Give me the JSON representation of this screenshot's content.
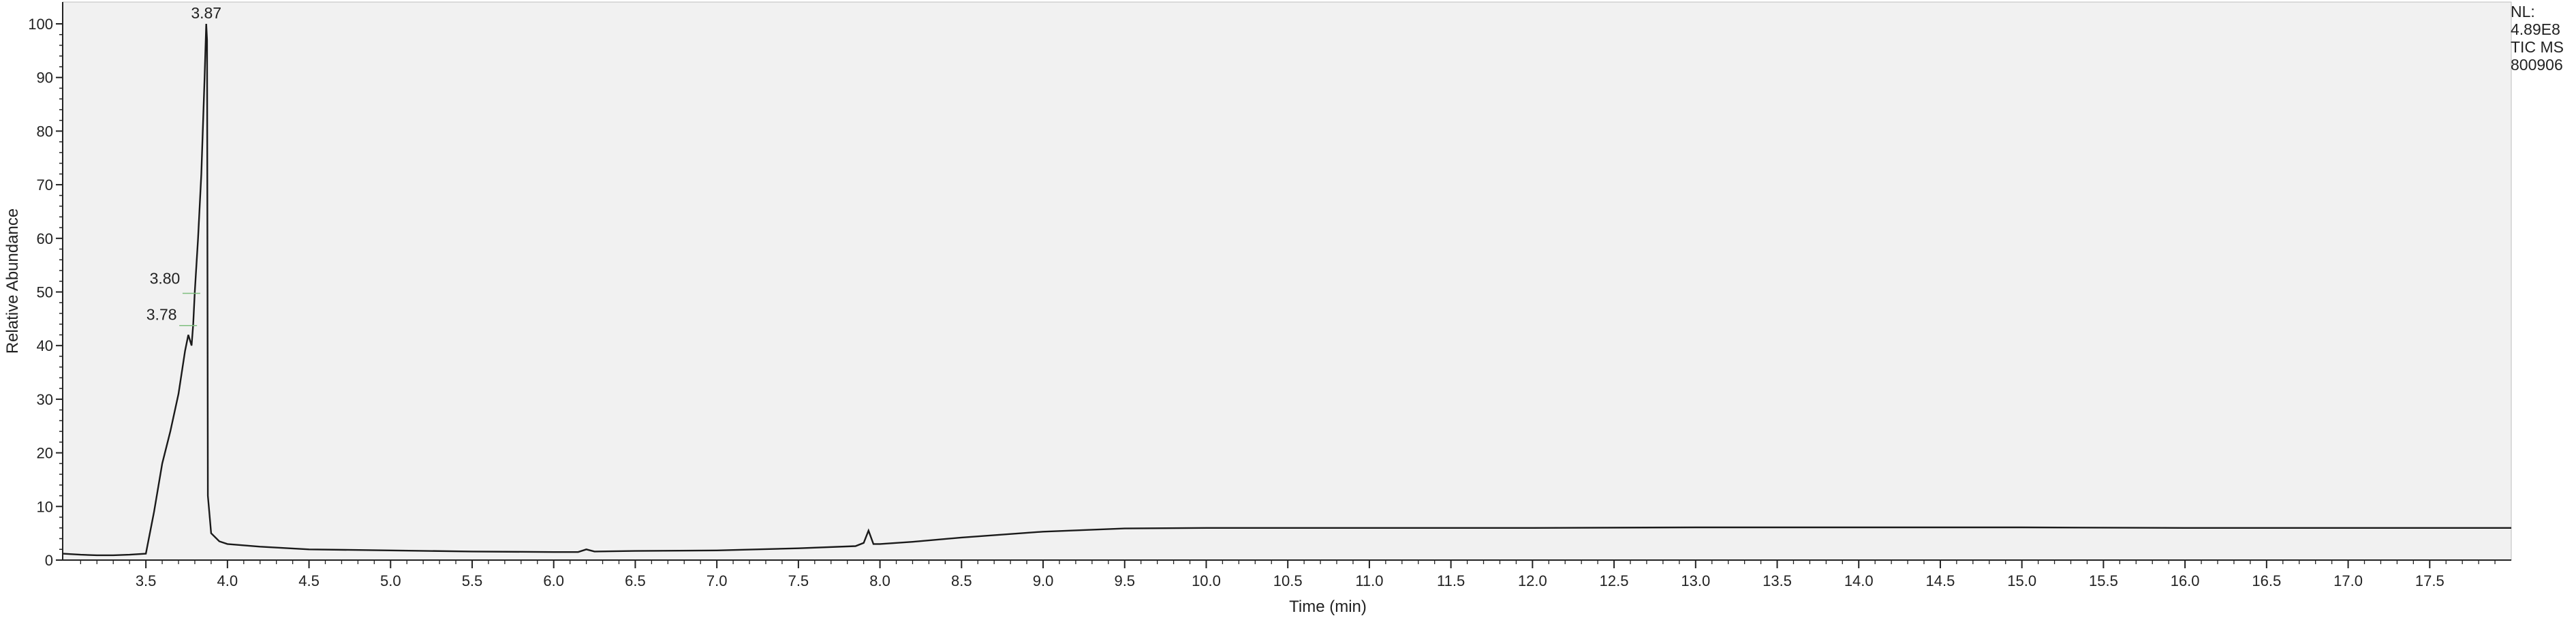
{
  "info": {
    "nl_label": "NL:",
    "nl_value": "4.89E8",
    "scan_type": "TIC  MS",
    "file_id": "800906"
  },
  "chart_data": {
    "type": "line",
    "title": "",
    "xlabel": "Time (min)",
    "ylabel": "Relative Abundance",
    "xlim": [
      2.99,
      18.0
    ],
    "ylim": [
      0,
      100
    ],
    "x_ticks": [
      3.5,
      4.0,
      4.5,
      5.0,
      5.5,
      6.0,
      6.5,
      7.0,
      7.5,
      8.0,
      8.5,
      9.0,
      9.5,
      10.0,
      10.5,
      11.0,
      11.5,
      12.0,
      12.5,
      13.0,
      13.5,
      14.0,
      14.5,
      15.0,
      15.5,
      16.0,
      16.5,
      17.0,
      17.5
    ],
    "x_tick_labels": [
      "3.5",
      "4.0",
      "4.5",
      "5.0",
      "5.5",
      "6.0",
      "6.5",
      "7.0",
      "7.5",
      "8.0",
      "8.5",
      "9.0",
      "9.5",
      "10.0",
      "10.5",
      "11.0",
      "11.5",
      "12.0",
      "12.5",
      "13.0",
      "13.5",
      "14.0",
      "14.5",
      "15.0",
      "15.5",
      "16.0",
      "16.5",
      "17.0",
      "17.5"
    ],
    "y_ticks": [
      0,
      10,
      20,
      30,
      40,
      50,
      60,
      70,
      80,
      90,
      100
    ],
    "y_tick_labels": [
      "0",
      "10",
      "20",
      "30",
      "40",
      "50",
      "60",
      "70",
      "80",
      "90",
      "100"
    ],
    "grid": false,
    "line_color": "#1a1a1a",
    "background_color": "#f1f1f1",
    "peak_annotations": [
      {
        "label": "3.87",
        "x": 3.87,
        "y": 100
      },
      {
        "label": "3.80",
        "x": 3.8,
        "y": 50
      },
      {
        "label": "3.78",
        "x": 3.78,
        "y": 44
      }
    ],
    "series": [
      {
        "x": [
          2.99,
          3.1,
          3.2,
          3.3,
          3.4,
          3.5,
          3.55,
          3.6,
          3.65,
          3.7,
          3.74,
          3.76,
          3.78,
          3.79,
          3.8,
          3.82,
          3.84,
          3.86,
          3.87,
          3.875,
          3.88,
          3.9,
          3.95,
          4.0,
          4.2,
          4.5,
          5.0,
          5.5,
          6.0,
          6.15,
          6.2,
          6.25,
          6.5,
          7.0,
          7.5,
          7.85,
          7.9,
          7.93,
          7.96,
          8.0,
          8.2,
          8.5,
          9.0,
          9.5,
          10.0,
          11.0,
          12.0,
          13.0,
          14.0,
          15.0,
          16.0,
          17.0,
          18.0
        ],
        "y": [
          1.2,
          1.0,
          0.9,
          0.9,
          1.0,
          1.2,
          9,
          18,
          24,
          31,
          39,
          42,
          40,
          44,
          50,
          60,
          72,
          90,
          100,
          97,
          12,
          5,
          3.5,
          3.0,
          2.5,
          2.0,
          1.8,
          1.6,
          1.5,
          1.5,
          2.0,
          1.6,
          1.7,
          1.8,
          2.2,
          2.6,
          3.2,
          5.5,
          3.0,
          3.0,
          3.4,
          4.2,
          5.3,
          5.9,
          6.0,
          6.0,
          6.0,
          6.1,
          6.1,
          6.1,
          6.0,
          6.0,
          6.0
        ]
      }
    ]
  }
}
